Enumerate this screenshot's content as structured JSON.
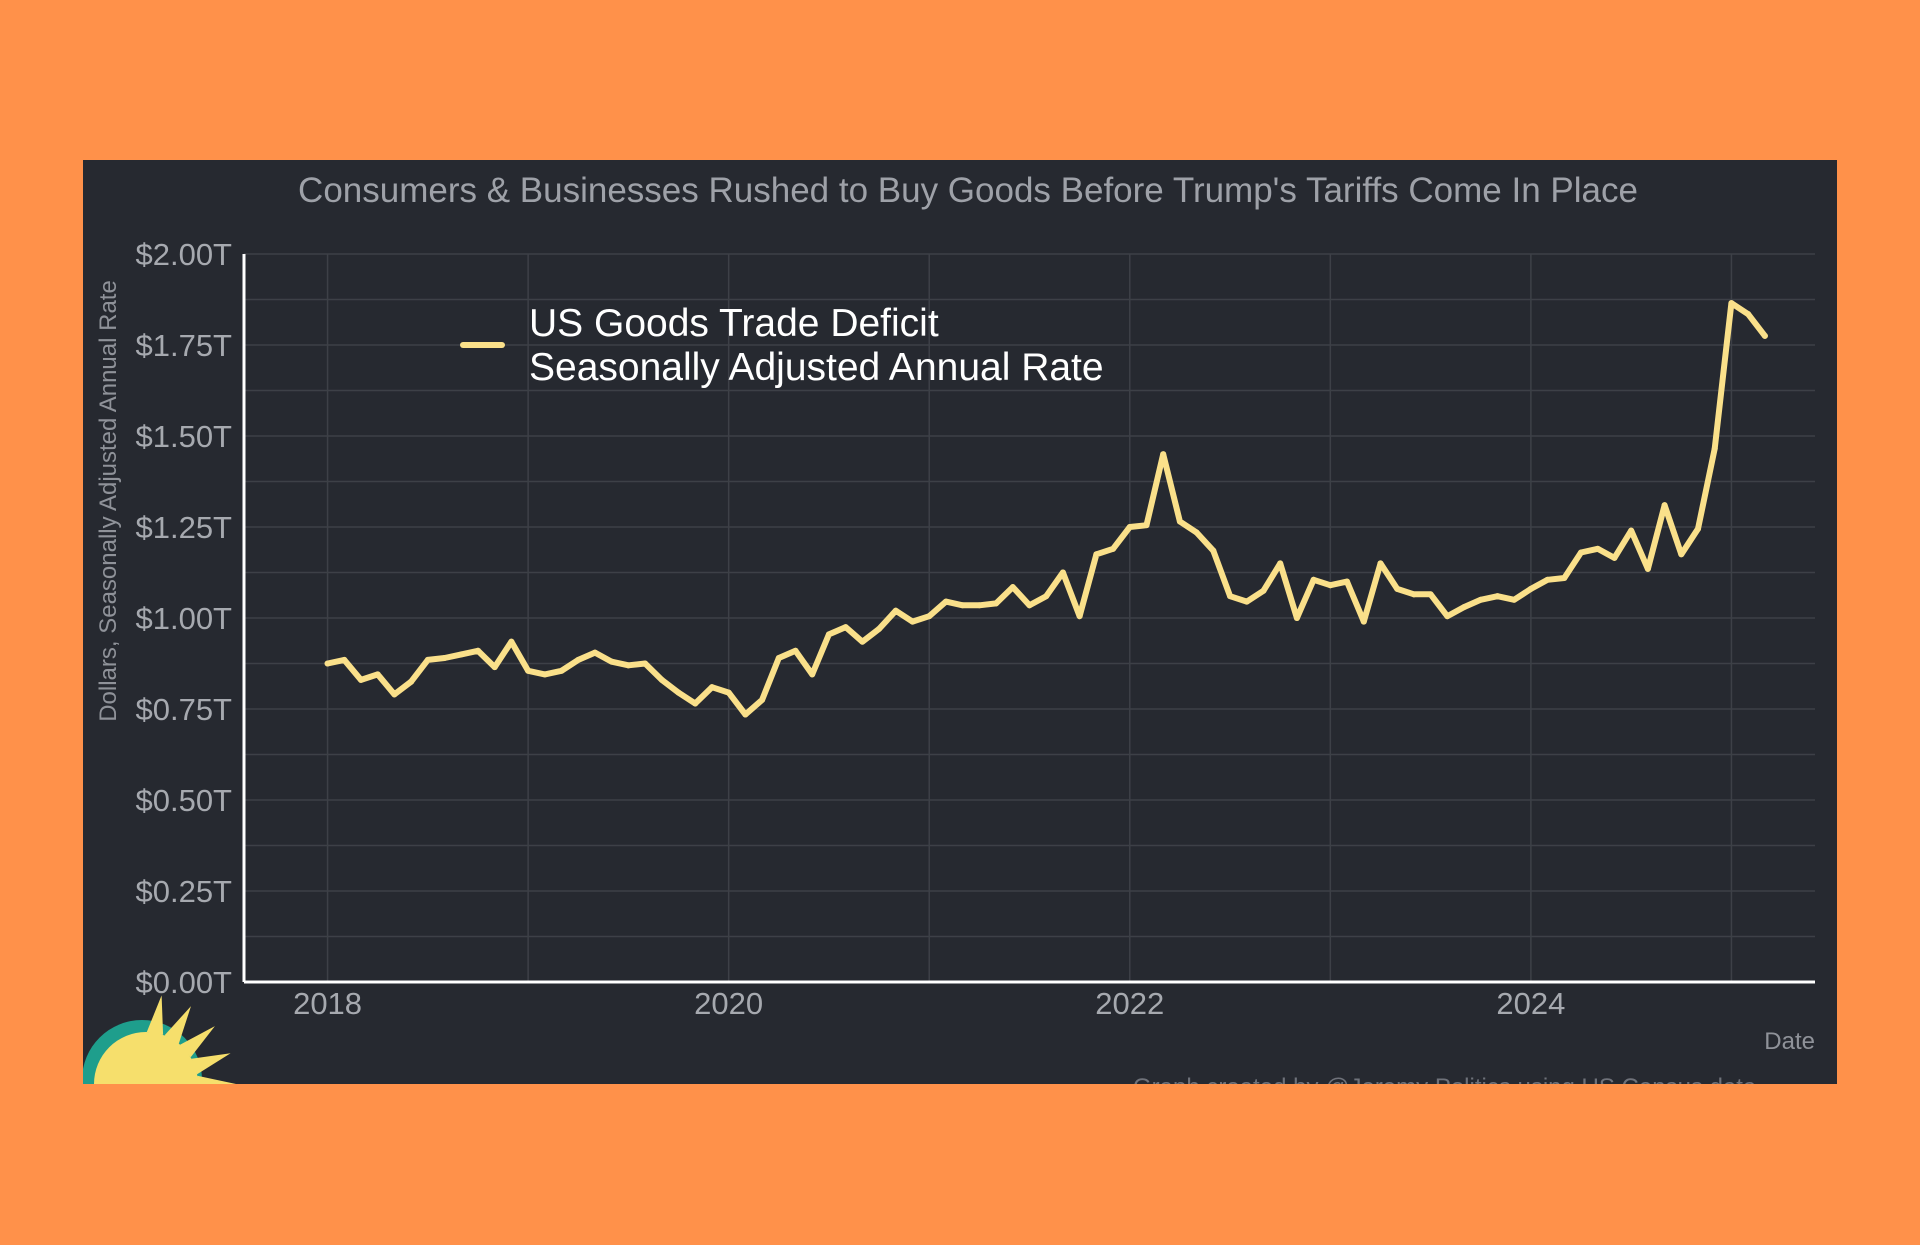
{
  "colors": {
    "page_background": "#FF914A",
    "panel_background": "#262930",
    "line": "#FAE08A",
    "grid": "#3D4047",
    "axis": "#FFFFFF",
    "sun_teal": "#1E9E8C",
    "sun_yellow": "#F6DF6C"
  },
  "icons": [
    "sun-logo-icon"
  ],
  "chart_data": {
    "type": "line",
    "title": "Consumers & Businesses Rushed to Buy Goods Before Trump's Tariffs Come In Place",
    "xlabel": "Date",
    "ylabel": "Dollars, Seasonally Adjusted Annual Rate",
    "ylim": [
      0,
      2.0
    ],
    "y_unit": "trillions of dollars",
    "xlim": [
      "2017-08",
      "2025-06"
    ],
    "x_ticks": [
      "2018",
      "2020",
      "2022",
      "2024"
    ],
    "y_ticks": [
      "$0.00T",
      "$0.25T",
      "$0.50T",
      "$0.75T",
      "$1.00T",
      "$1.25T",
      "$1.50T",
      "$1.75T",
      "$2.00T"
    ],
    "y_tick_values": [
      0,
      0.25,
      0.5,
      0.75,
      1.0,
      1.25,
      1.5,
      1.75,
      2.0
    ],
    "grid": true,
    "legend_position": "top-left",
    "legend": [
      "US Goods Trade Deficit",
      "Seasonally Adjusted Annual Rate"
    ],
    "caption": "Graph created by @Jeremy Politics using US Census data",
    "series": [
      {
        "name": "US Goods Trade Deficit Seasonally Adjusted Annual Rate",
        "x": [
          "2018-01",
          "2018-02",
          "2018-03",
          "2018-04",
          "2018-05",
          "2018-06",
          "2018-07",
          "2018-08",
          "2018-09",
          "2018-10",
          "2018-11",
          "2018-12",
          "2019-01",
          "2019-02",
          "2019-03",
          "2019-04",
          "2019-05",
          "2019-06",
          "2019-07",
          "2019-08",
          "2019-09",
          "2019-10",
          "2019-11",
          "2019-12",
          "2020-01",
          "2020-02",
          "2020-03",
          "2020-04",
          "2020-05",
          "2020-06",
          "2020-07",
          "2020-08",
          "2020-09",
          "2020-10",
          "2020-11",
          "2020-12",
          "2021-01",
          "2021-02",
          "2021-03",
          "2021-04",
          "2021-05",
          "2021-06",
          "2021-07",
          "2021-08",
          "2021-09",
          "2021-10",
          "2021-11",
          "2021-12",
          "2022-01",
          "2022-02",
          "2022-03",
          "2022-04",
          "2022-05",
          "2022-06",
          "2022-07",
          "2022-08",
          "2022-09",
          "2022-10",
          "2022-11",
          "2022-12",
          "2023-01",
          "2023-02",
          "2023-03",
          "2023-04",
          "2023-05",
          "2023-06",
          "2023-07",
          "2023-08",
          "2023-09",
          "2023-10",
          "2023-11",
          "2023-12",
          "2024-01",
          "2024-02",
          "2024-03",
          "2024-04",
          "2024-05",
          "2024-06",
          "2024-07",
          "2024-08",
          "2024-09",
          "2024-10",
          "2024-11",
          "2024-12",
          "2025-01",
          "2025-02",
          "2025-03"
        ],
        "values": [
          0.875,
          0.885,
          0.83,
          0.845,
          0.79,
          0.825,
          0.885,
          0.89,
          0.9,
          0.91,
          0.865,
          0.935,
          0.855,
          0.845,
          0.855,
          0.885,
          0.905,
          0.88,
          0.87,
          0.875,
          0.83,
          0.795,
          0.765,
          0.81,
          0.795,
          0.735,
          0.775,
          0.89,
          0.91,
          0.845,
          0.955,
          0.975,
          0.935,
          0.97,
          1.02,
          0.99,
          1.005,
          1.045,
          1.035,
          1.035,
          1.04,
          1.085,
          1.035,
          1.06,
          1.125,
          1.005,
          1.175,
          1.19,
          1.25,
          1.255,
          1.45,
          1.265,
          1.235,
          1.185,
          1.06,
          1.045,
          1.075,
          1.15,
          1.0,
          1.105,
          1.09,
          1.1,
          0.99,
          1.15,
          1.08,
          1.065,
          1.065,
          1.005,
          1.03,
          1.05,
          1.06,
          1.05,
          1.08,
          1.105,
          1.11,
          1.18,
          1.19,
          1.165,
          1.24,
          1.135,
          1.31,
          1.175,
          1.245,
          1.465,
          1.865,
          1.835,
          1.775
        ]
      }
    ]
  }
}
